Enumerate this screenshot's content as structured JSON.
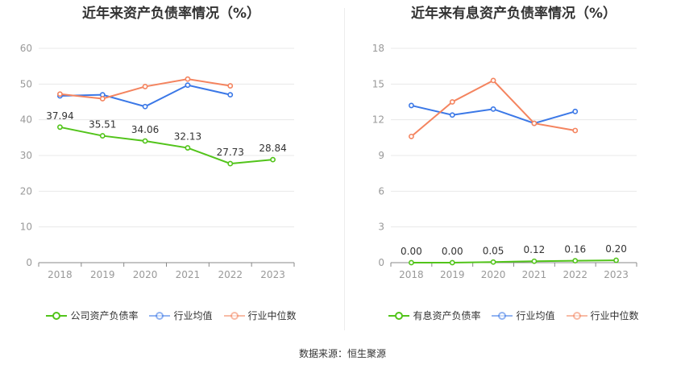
{
  "source": "数据来源：恒生聚源",
  "chart_data": [
    {
      "type": "line",
      "title": "近年来资产负债率情况（%）",
      "categories": [
        "2018",
        "2019",
        "2020",
        "2021",
        "2022",
        "2023"
      ],
      "ylim": [
        0,
        60
      ],
      "yticks": [
        0,
        10,
        20,
        30,
        40,
        50,
        60
      ],
      "grid": true,
      "legend_position": "bottom",
      "series": [
        {
          "name": "公司资产负债率",
          "color": "#52c41a",
          "values": [
            37.94,
            35.51,
            34.06,
            32.13,
            27.73,
            28.84
          ],
          "labels": [
            "37.94",
            "35.51",
            "34.06",
            "32.13",
            "27.73",
            "28.84"
          ]
        },
        {
          "name": "行业均值",
          "color": "#3b78e7",
          "values": [
            46.7,
            47.0,
            43.7,
            49.7,
            47.0,
            null
          ]
        },
        {
          "name": "行业中位数",
          "color": "#f4845f",
          "values": [
            47.2,
            45.9,
            49.3,
            51.4,
            49.5,
            null
          ]
        }
      ]
    },
    {
      "type": "line",
      "title": "近年来有息资产负债率情况（%）",
      "categories": [
        "2018",
        "2019",
        "2020",
        "2021",
        "2022",
        "2023"
      ],
      "ylim": [
        0,
        18
      ],
      "yticks": [
        0,
        3,
        6,
        9,
        12,
        15,
        18
      ],
      "grid": true,
      "legend_position": "bottom",
      "series": [
        {
          "name": "有息资产负债率",
          "color": "#52c41a",
          "values": [
            0.0,
            0.0,
            0.05,
            0.12,
            0.16,
            0.2
          ],
          "labels": [
            "0.00",
            "0.00",
            "0.05",
            "0.12",
            "0.16",
            "0.20"
          ]
        },
        {
          "name": "行业均值",
          "color": "#3b78e7",
          "values": [
            13.2,
            12.4,
            12.9,
            11.7,
            12.7,
            null
          ]
        },
        {
          "name": "行业中位数",
          "color": "#f4845f",
          "values": [
            10.6,
            13.5,
            15.3,
            11.7,
            11.1,
            null
          ]
        }
      ]
    }
  ]
}
